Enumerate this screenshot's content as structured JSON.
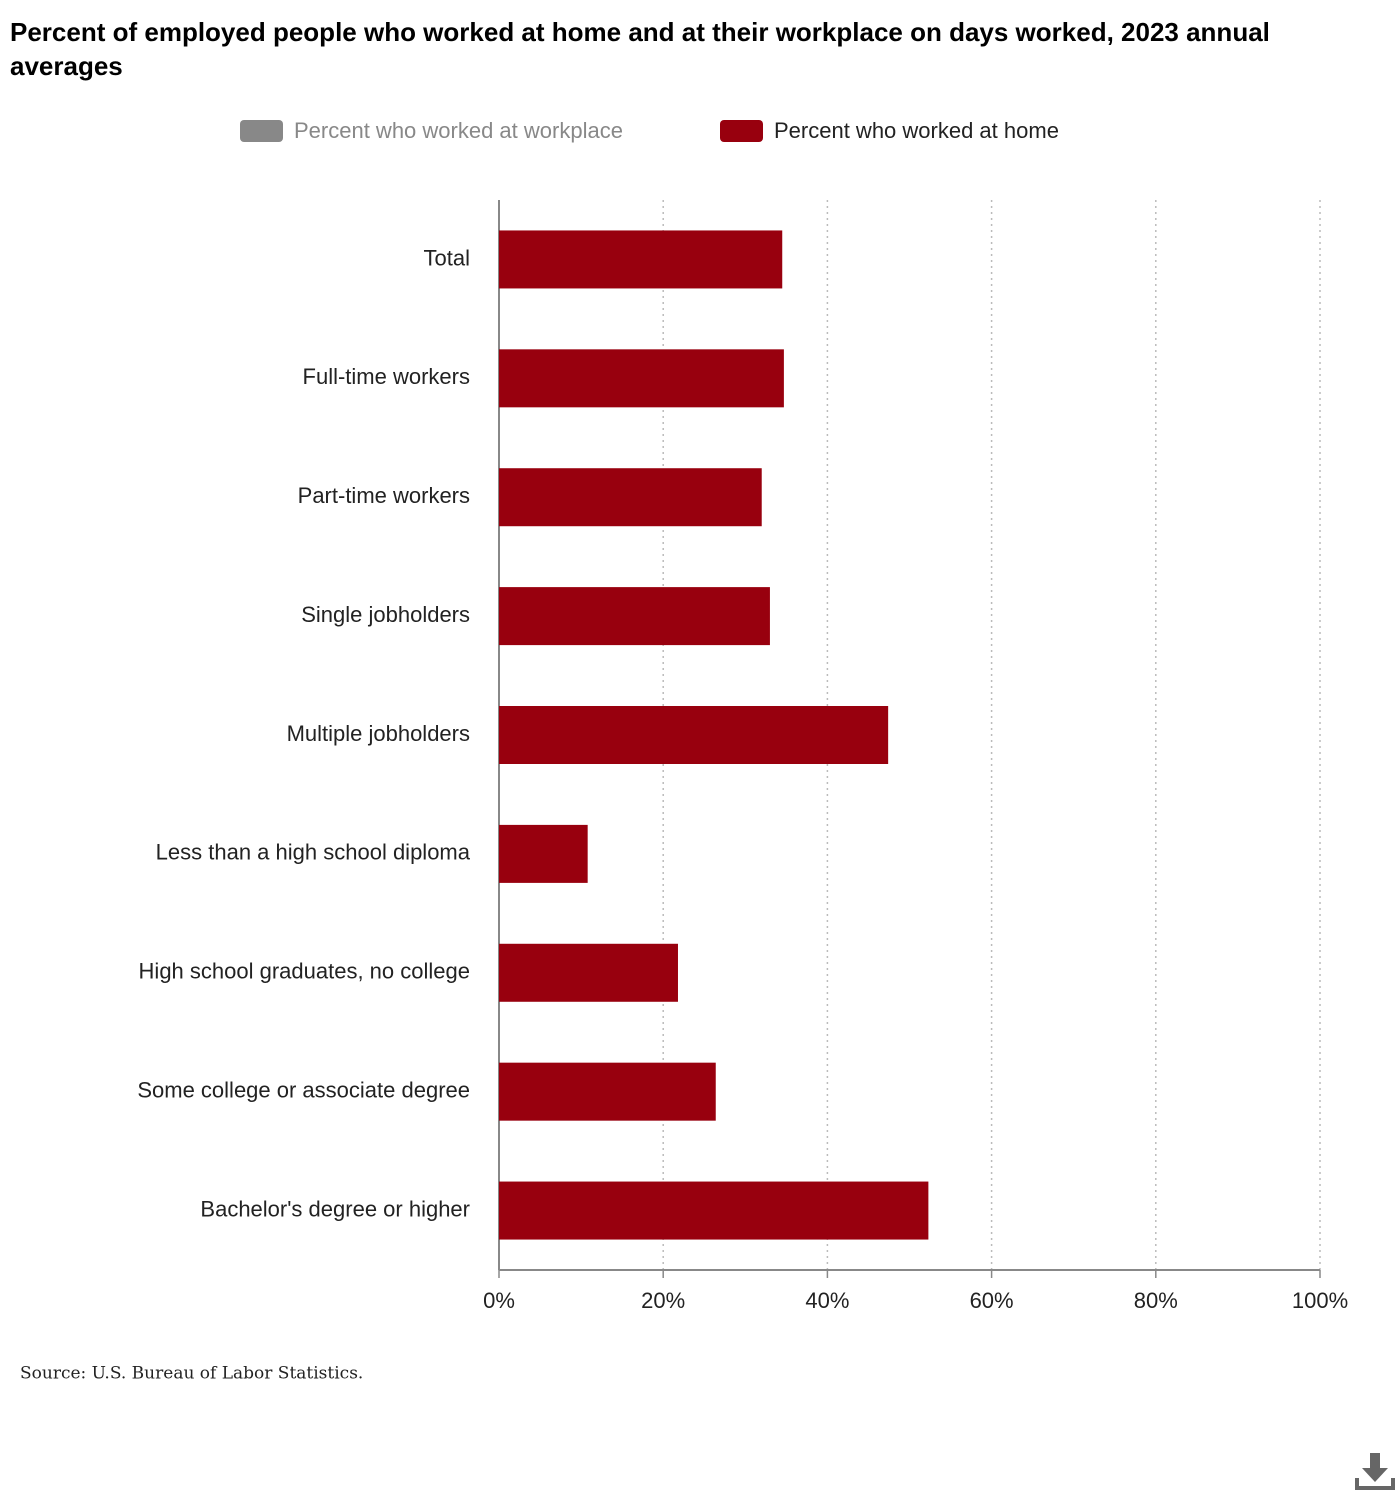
{
  "chart_data": {
    "type": "barh",
    "title": "Percent of employed people who worked at home and at their workplace on days worked, 2023 annual averages",
    "categories": [
      "Total",
      "Full-time workers",
      "Part-time workers",
      "Single jobholders",
      "Multiple jobholders",
      "Less than a high school diploma",
      "High school graduates, no college",
      "Some college or associate degree",
      "Bachelor's degree or higher"
    ],
    "series": [
      {
        "name": "Percent who worked at workplace",
        "color": "#888888",
        "visible": false,
        "values": [
          null,
          null,
          null,
          null,
          null,
          null,
          null,
          null,
          null
        ]
      },
      {
        "name": "Percent who worked at home",
        "color": "#98000e",
        "visible": true,
        "values": [
          34.5,
          34.7,
          32.0,
          33.0,
          47.4,
          10.8,
          21.8,
          26.4,
          52.3
        ]
      }
    ],
    "xlim": [
      0,
      100
    ],
    "xticks": [
      {
        "value": 0,
        "label": "0%"
      },
      {
        "value": 20,
        "label": "20%"
      },
      {
        "value": 40,
        "label": "40%"
      },
      {
        "value": 60,
        "label": "60%"
      },
      {
        "value": 80,
        "label": "80%"
      },
      {
        "value": 100,
        "label": "100%"
      }
    ],
    "grid": true,
    "source": "Source: U.S. Bureau of Labor Statistics."
  }
}
